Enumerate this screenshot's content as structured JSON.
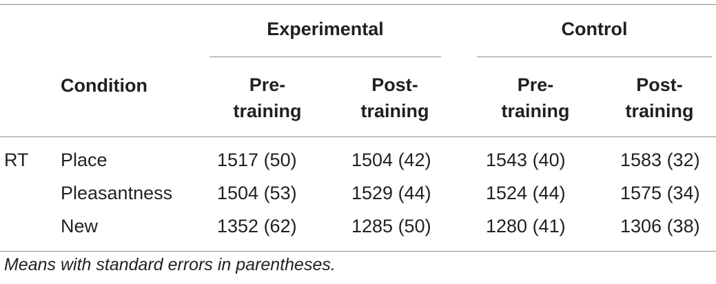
{
  "table": {
    "group_headers": {
      "experimental": "Experimental",
      "control": "Control"
    },
    "condition_header": "Condition",
    "sub_headers": [
      {
        "line1": "Pre-",
        "line2": "training"
      },
      {
        "line1": "Post-",
        "line2": "training"
      },
      {
        "line1": "Pre-",
        "line2": "training"
      },
      {
        "line1": "Post-",
        "line2": "training"
      }
    ],
    "measure_label": "RT",
    "rows": [
      {
        "condition": "Place",
        "values": [
          "1517 (50)",
          "1504 (42)",
          "1543 (40)",
          "1583 (32)"
        ]
      },
      {
        "condition": "Pleasantness",
        "values": [
          "1504 (53)",
          "1529 (44)",
          "1524 (44)",
          "1575 (34)"
        ]
      },
      {
        "condition": "New",
        "values": [
          "1352 (62)",
          "1285 (50)",
          "1280 (41)",
          "1306 (38)"
        ]
      }
    ],
    "footnote": "Means with standard errors in parentheses."
  }
}
